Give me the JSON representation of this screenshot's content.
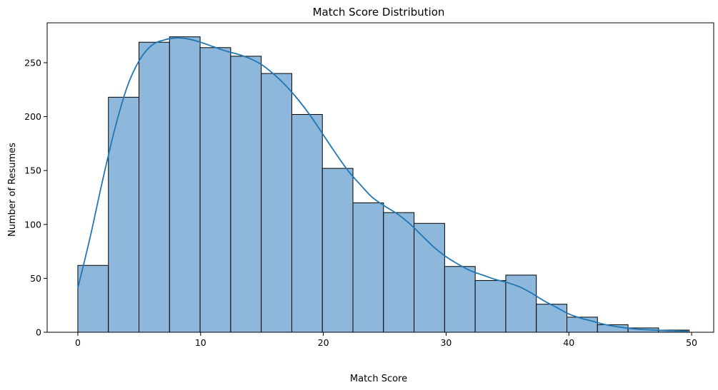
{
  "chart_data": {
    "type": "bar",
    "title": "Match Score Distribution",
    "xlabel": "Match Score",
    "ylabel": "Number of Resumes",
    "xlim": [
      -2.5,
      51.8
    ],
    "ylim": [
      0,
      287
    ],
    "x_ticks": [
      0,
      10,
      20,
      30,
      40,
      50
    ],
    "y_ticks": [
      0,
      50,
      100,
      150,
      200,
      250
    ],
    "grid": false,
    "bin_width": 2.49,
    "bins_start": [
      0,
      2.49,
      4.98,
      7.47,
      9.96,
      12.45,
      14.94,
      17.43,
      19.92,
      22.41,
      24.9,
      27.39,
      29.88,
      32.37,
      34.86,
      37.35,
      39.84,
      42.33,
      44.82,
      47.31
    ],
    "counts": [
      62,
      218,
      269,
      274,
      264,
      256,
      240,
      202,
      152,
      120,
      111,
      101,
      61,
      48,
      53,
      26,
      14,
      7,
      4,
      2
    ],
    "bar_color": "#8db8db",
    "bar_edge_color": "#000000",
    "kde": {
      "x": [
        0,
        1,
        2,
        3,
        4,
        5,
        6,
        7,
        8,
        9,
        10,
        11,
        12,
        13,
        14,
        15,
        16,
        17,
        18,
        19,
        20,
        21,
        22,
        23,
        24,
        25,
        26,
        27,
        28,
        29,
        30,
        31,
        32,
        33,
        34,
        35,
        36,
        37,
        38,
        39,
        40,
        41,
        42,
        43,
        44,
        45,
        46,
        47,
        48,
        49,
        49.7
      ],
      "y": [
        41,
        88,
        140,
        188,
        227,
        252,
        266,
        271,
        273,
        272,
        269,
        265,
        261,
        258,
        254,
        248,
        239,
        228,
        215,
        200,
        183,
        166,
        150,
        137,
        125,
        117,
        110,
        101,
        90,
        79,
        70,
        63,
        57,
        53,
        49,
        46,
        42,
        36,
        29,
        23,
        17,
        13,
        10,
        7,
        5,
        3.5,
        2.5,
        2,
        1.5,
        1.2,
        1
      ],
      "color": "#1f77b4"
    }
  }
}
